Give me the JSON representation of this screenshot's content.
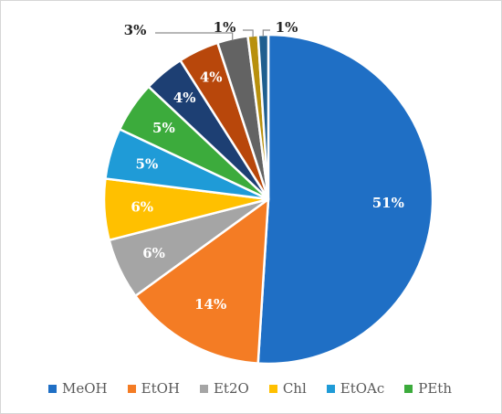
{
  "chart_data": {
    "type": "pie",
    "title": "",
    "slices": [
      {
        "label": "MeOH",
        "value": 51,
        "display": "51%",
        "color": "#1f6fc5"
      },
      {
        "label": "EtOH",
        "value": 14,
        "display": "14%",
        "color": "#f47c24"
      },
      {
        "label": "Et2O",
        "value": 6,
        "display": "6%",
        "color": "#a5a5a5"
      },
      {
        "label": "Chl",
        "value": 6,
        "display": "6%",
        "color": "#ffc000"
      },
      {
        "label": "EtOAc",
        "value": 5,
        "display": "5%",
        "color": "#1f9bd7"
      },
      {
        "label": "PEth",
        "value": 5,
        "display": "5%",
        "color": "#3cab3c"
      },
      {
        "label": "",
        "value": 4,
        "display": "4%",
        "color": "#1d3f73"
      },
      {
        "label": "",
        "value": 4,
        "display": "4%",
        "color": "#b8470b"
      },
      {
        "label": "",
        "value": 3,
        "display": "3%",
        "color": "#636363"
      },
      {
        "label": "",
        "value": 1,
        "display": "1%",
        "color": "#b8900d"
      },
      {
        "label": "",
        "value": 1,
        "display": "1%",
        "color": "#1f5f8f"
      }
    ],
    "legend": [
      "MeOH",
      "EtOH",
      "Et2O",
      "Chl",
      "EtOAc",
      "PEth"
    ],
    "legend_position": "bottom"
  }
}
